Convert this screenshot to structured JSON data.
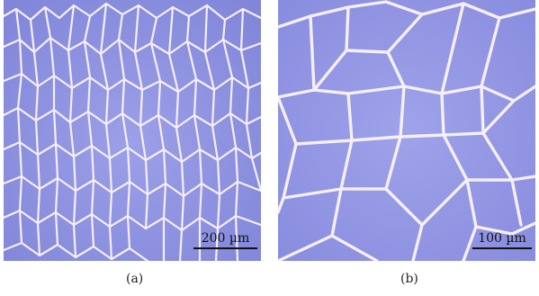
{
  "figure": {
    "panel_a": {
      "scale_label": "200 µm",
      "caption": "(a)"
    },
    "panel_b": {
      "scale_label": "100 µm",
      "caption": "(b)"
    }
  },
  "colors": {
    "substrate": "#8a8ee0",
    "crack": "#f6eef8"
  }
}
